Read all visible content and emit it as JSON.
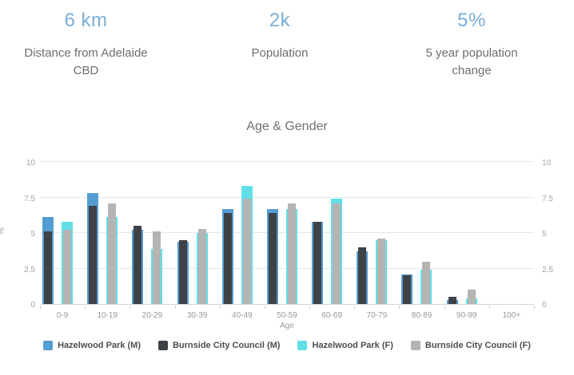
{
  "stats": [
    {
      "value": "6 km",
      "label": "Distance from Adelaide CBD"
    },
    {
      "value": "2k",
      "label": "Population"
    },
    {
      "value": "5%",
      "label": "5 year population change"
    }
  ],
  "colors": {
    "stat_value": "#7aadd8",
    "stat_label": "#6e6e6e",
    "grid": "#e6e6e6",
    "axis_line": "#d4d4d4",
    "tick_text": "#a3a3a3"
  },
  "chart_data": {
    "type": "bar",
    "title": "Age & Gender",
    "xlabel": "Age",
    "ylabel": "%",
    "ylim": [
      0,
      10
    ],
    "yticks": [
      0,
      2.5,
      5,
      7.5,
      10
    ],
    "grid": true,
    "legend_position": "bottom",
    "categories": [
      "0-9",
      "10-19",
      "20-29",
      "30-39",
      "40-49",
      "50-59",
      "60-69",
      "70-79",
      "80-89",
      "90-99",
      "100+"
    ],
    "series": [
      {
        "name": "Hazelwood Park (M)",
        "color": "#539dd2",
        "bar": "wide",
        "pair": "M",
        "values": [
          6.1,
          7.8,
          5.2,
          4.4,
          6.7,
          6.7,
          5.8,
          3.7,
          2.1,
          0.3,
          0
        ]
      },
      {
        "name": "Burnside City Council (M)",
        "color": "#3e4247",
        "bar": "narrow",
        "pair": "M",
        "values": [
          5.1,
          6.9,
          5.5,
          4.5,
          6.4,
          6.4,
          5.8,
          4.0,
          2.0,
          0.5,
          0
        ]
      },
      {
        "name": "Hazelwood Park (F)",
        "color": "#60e0e6",
        "bar": "wide",
        "pair": "F",
        "values": [
          5.8,
          6.1,
          3.9,
          5.0,
          8.3,
          6.7,
          7.4,
          4.5,
          2.4,
          0.4,
          0
        ]
      },
      {
        "name": "Burnside City Council (F)",
        "color": "#b6b3b3",
        "bar": "narrow",
        "pair": "F",
        "values": [
          5.2,
          7.1,
          5.1,
          5.3,
          7.4,
          7.1,
          7.1,
          4.6,
          3.0,
          1.0,
          0
        ]
      }
    ]
  }
}
